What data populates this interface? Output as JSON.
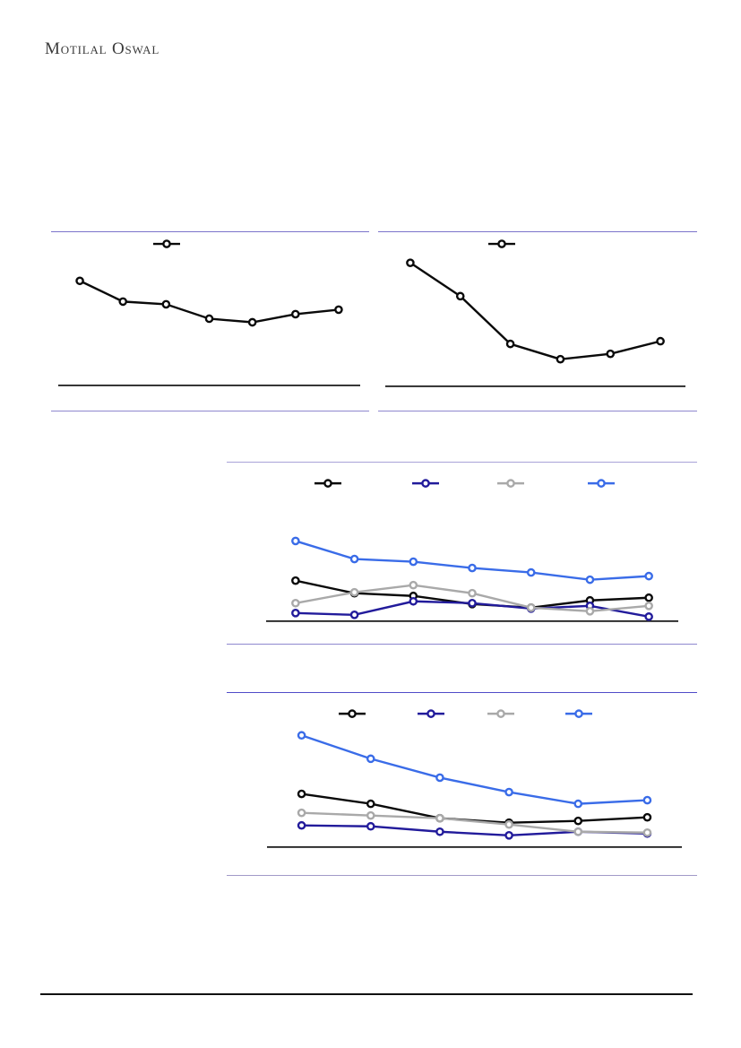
{
  "brand": {
    "logo_text": "Motilal Oswal"
  },
  "colors": {
    "panel_border": "#7b74cb",
    "axis": "#1a1a1a",
    "footer_rule": "#111111",
    "series_black": "#0a0a0a",
    "series_navy": "#221b9b",
    "series_gray": "#a9a9a9",
    "series_blue": "#3a6ce8"
  },
  "chart_data": [
    {
      "id": "top-left-line-chart",
      "type": "line",
      "title": "",
      "xlabel": "",
      "ylabel": "",
      "categories": [
        "",
        "",
        "",
        "",
        "",
        "",
        ""
      ],
      "unit": "relative units above baseline (axis tick labels not rendered in source image)",
      "grid": false,
      "legend_position": "top-center",
      "marker": "open-circle",
      "series": [
        {
          "name": "",
          "color_key": "series_black",
          "values": [
            116,
            93,
            90,
            74,
            70,
            79,
            84
          ]
        }
      ]
    },
    {
      "id": "top-right-line-chart",
      "type": "line",
      "title": "",
      "xlabel": "",
      "ylabel": "",
      "categories": [
        "",
        "",
        "",
        "",
        "",
        ""
      ],
      "unit": "relative units above baseline (axis tick labels not rendered in source image)",
      "grid": false,
      "legend_position": "top-center",
      "marker": "open-circle",
      "series": [
        {
          "name": "",
          "color_key": "series_black",
          "values": [
            137,
            100,
            47,
            30,
            36,
            50
          ]
        }
      ]
    },
    {
      "id": "middle-line-chart",
      "type": "line",
      "title": "",
      "xlabel": "",
      "ylabel": "",
      "categories": [
        "",
        "",
        "",
        "",
        "",
        "",
        ""
      ],
      "unit": "relative units above baseline (axis tick labels not rendered in source image)",
      "grid": false,
      "legend_position": "top",
      "marker": "open-circle",
      "series": [
        {
          "name": "",
          "color_key": "series_black",
          "values": [
            45,
            31,
            28,
            19,
            15,
            23,
            26
          ]
        },
        {
          "name": "",
          "color_key": "series_navy",
          "values": [
            9,
            7,
            22,
            20,
            14,
            17,
            5
          ]
        },
        {
          "name": "",
          "color_key": "series_gray",
          "values": [
            20,
            32,
            40,
            31,
            15,
            11,
            17
          ]
        },
        {
          "name": "",
          "color_key": "series_blue",
          "values": [
            89,
            69,
            66,
            59,
            54,
            46,
            50
          ]
        }
      ]
    },
    {
      "id": "bottom-line-chart",
      "type": "line",
      "title": "",
      "xlabel": "",
      "ylabel": "",
      "categories": [
        "",
        "",
        "",
        "",
        "",
        ""
      ],
      "unit": "relative units above baseline (axis tick labels not rendered in source image)",
      "grid": false,
      "legend_position": "top",
      "marker": "open-circle",
      "series": [
        {
          "name": "",
          "color_key": "series_black",
          "values": [
            59,
            48,
            32,
            27,
            29,
            33
          ]
        },
        {
          "name": "",
          "color_key": "series_navy",
          "values": [
            24,
            23,
            17,
            13,
            17,
            15
          ]
        },
        {
          "name": "",
          "color_key": "series_gray",
          "values": [
            38,
            35,
            32,
            25,
            17,
            16
          ]
        },
        {
          "name": "",
          "color_key": "series_blue",
          "values": [
            124,
            98,
            77,
            61,
            48,
            52
          ]
        }
      ]
    }
  ]
}
